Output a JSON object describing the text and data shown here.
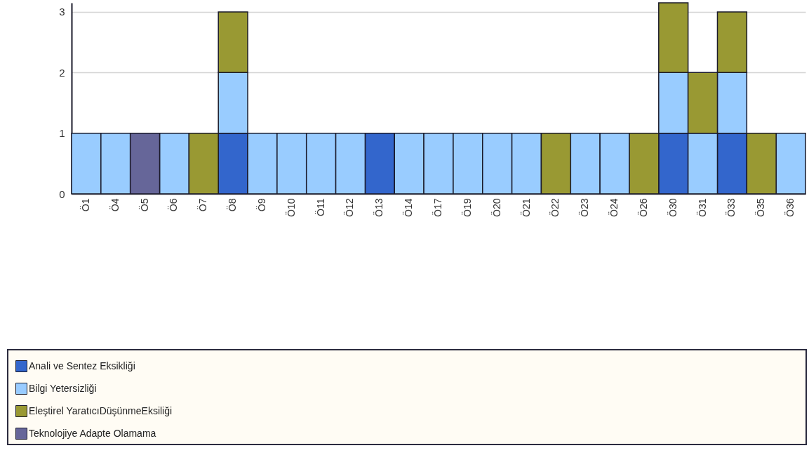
{
  "chart_data": {
    "type": "bar",
    "stacked": true,
    "categories": [
      "Ö1",
      "Ö4",
      "Ö5",
      "Ö6",
      "Ö7",
      "Ö8",
      "Ö9",
      "Ö10",
      "Ö11",
      "Ö12",
      "Ö13",
      "Ö14",
      "Ö17",
      "Ö19",
      "Ö20",
      "Ö21",
      "Ö22",
      "Ö23",
      "Ö24",
      "Ö26",
      "Ö30",
      "Ö31",
      "Ö33",
      "Ö35",
      "Ö36"
    ],
    "series": [
      {
        "name": "Anali ve Sentez Eksikliği",
        "color": "#3366cc",
        "values": [
          null,
          null,
          null,
          null,
          null,
          1,
          null,
          null,
          null,
          null,
          1,
          null,
          null,
          null,
          null,
          null,
          null,
          null,
          null,
          null,
          1,
          null,
          1,
          null,
          null
        ]
      },
      {
        "name": "Bilgi Yetersizliği",
        "color": "#99ccff",
        "values": [
          1,
          1,
          null,
          1,
          null,
          1,
          1,
          1,
          1,
          1,
          null,
          1,
          1,
          1,
          1,
          1,
          null,
          1,
          1,
          null,
          1,
          1,
          1,
          null,
          1
        ]
      },
      {
        "name": "Eleştirel YaratıcıDüşünmeEksiliği",
        "color": "#999933",
        "values": [
          null,
          null,
          null,
          null,
          1,
          1,
          null,
          null,
          null,
          null,
          null,
          null,
          null,
          null,
          null,
          null,
          1,
          null,
          null,
          1,
          1.15,
          1,
          1,
          1,
          null
        ]
      },
      {
        "name": "Teknolojiye Adapte Olamama",
        "color": "#666699",
        "values": [
          null,
          null,
          1,
          null,
          null,
          null,
          null,
          null,
          null,
          null,
          null,
          null,
          null,
          null,
          null,
          null,
          null,
          null,
          null,
          null,
          null,
          null,
          null,
          null,
          null
        ]
      }
    ],
    "ylim": [
      0,
      3.15
    ],
    "yticks": [
      0,
      1,
      2,
      3
    ],
    "grid": "y",
    "legend": "bottom"
  }
}
